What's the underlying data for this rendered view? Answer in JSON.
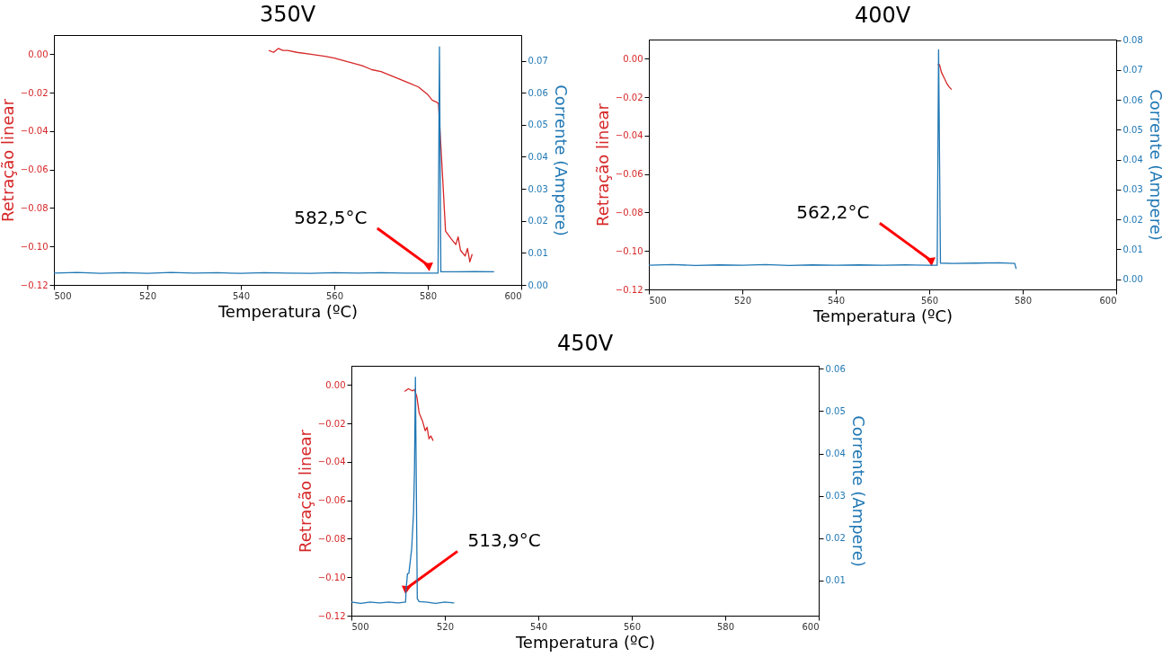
{
  "chart_data": [
    {
      "type": "line",
      "title": "350V",
      "xlabel": "Temperatura (ºC)",
      "ylabel": "Retração linear",
      "y2label": "Corrente (Ampere)",
      "xlim": [
        500,
        600
      ],
      "xticks": [
        500,
        520,
        540,
        560,
        580,
        600
      ],
      "ylim": [
        -0.12,
        0.01
      ],
      "yticks": [
        {
          "value": -0.12,
          "label": "−0.12"
        },
        {
          "value": -0.1,
          "label": "−0.10"
        },
        {
          "value": -0.08,
          "label": "−0.08"
        },
        {
          "value": -0.06,
          "label": "−0.06"
        },
        {
          "value": -0.04,
          "label": "−0.04"
        },
        {
          "value": -0.02,
          "label": "−0.02"
        },
        {
          "value": 0,
          "label": "0.00"
        }
      ],
      "y2lim": [
        0,
        0.078
      ],
      "y2ticks": [
        {
          "value": 0,
          "label": "0.00"
        },
        {
          "value": 0.01,
          "label": "0.01"
        },
        {
          "value": 0.02,
          "label": "0.02"
        },
        {
          "value": 0.03,
          "label": "0.03"
        },
        {
          "value": 0.04,
          "label": "0.04"
        },
        {
          "value": 0.05,
          "label": "0.05"
        },
        {
          "value": 0.06,
          "label": "0.06"
        },
        {
          "value": 0.07,
          "label": "0.07"
        }
      ],
      "annotations": [
        {
          "text": "582,5°C",
          "x": 580.2,
          "y": -0.11
        }
      ],
      "series": [
        {
          "color": "#d62728",
          "x": [
            546,
            547,
            548,
            549,
            550,
            552,
            555,
            558,
            560,
            563,
            566,
            568,
            570,
            572,
            574,
            576,
            578,
            580,
            581,
            582,
            582.3,
            583.2,
            583.8,
            585,
            586,
            586.5,
            587,
            588,
            588.5,
            589,
            589.5
          ],
          "values": [
            0.002,
            0.001,
            0.003,
            0.002,
            0.002,
            0.001,
            0,
            -0.001,
            -0.002,
            -0.004,
            -0.006,
            -0.008,
            -0.009,
            -0.011,
            -0.013,
            -0.015,
            -0.017,
            -0.021,
            -0.024,
            -0.025,
            -0.026,
            -0.065,
            -0.092,
            -0.096,
            -0.099,
            -0.095,
            -0.102,
            -0.105,
            -0.101,
            -0.108,
            -0.104
          ]
        },
        {
          "color": "#1f77b4",
          "axis": "y2",
          "x": [
            500,
            505,
            510,
            515,
            520,
            525,
            530,
            535,
            540,
            545,
            550,
            555,
            560,
            565,
            570,
            575,
            580,
            582.2,
            582.5,
            582.8,
            585,
            590,
            594.2
          ],
          "values": [
            0.0037,
            0.0039,
            0.0036,
            0.0038,
            0.0036,
            0.0039,
            0.0037,
            0.0038,
            0.0036,
            0.0038,
            0.0037,
            0.0036,
            0.0038,
            0.0037,
            0.0038,
            0.0037,
            0.0037,
            0.0037,
            0.0743,
            0.0041,
            0.0041,
            0.0042,
            0.0041
          ]
        }
      ]
    },
    {
      "type": "line",
      "title": "400V",
      "xlabel": "Temperatura (ºC)",
      "ylabel": "Retração linear",
      "y2label": "Corrente (Ampere)",
      "xlim": [
        500,
        600
      ],
      "xticks": [
        500,
        520,
        540,
        560,
        580,
        600
      ],
      "ylim": [
        -0.12,
        0.01
      ],
      "yticks": [
        {
          "value": -0.12,
          "label": "−0.12"
        },
        {
          "value": -0.1,
          "label": "−0.10"
        },
        {
          "value": -0.08,
          "label": "−0.08"
        },
        {
          "value": -0.06,
          "label": "−0.06"
        },
        {
          "value": -0.04,
          "label": "−0.04"
        },
        {
          "value": -0.02,
          "label": "−0.02"
        },
        {
          "value": 0,
          "label": "0.00"
        }
      ],
      "y2lim": [
        -0.0034,
        0.0802
      ],
      "y2ticks": [
        {
          "value": 0,
          "label": "0.00"
        },
        {
          "value": 0.01,
          "label": "0.01"
        },
        {
          "value": 0.02,
          "label": "0.02"
        },
        {
          "value": 0.03,
          "label": "0.03"
        },
        {
          "value": 0.04,
          "label": "0.04"
        },
        {
          "value": 0.05,
          "label": "0.05"
        },
        {
          "value": 0.06,
          "label": "0.06"
        },
        {
          "value": 0.07,
          "label": "0.07"
        },
        {
          "value": 0.08,
          "label": "0.08"
        }
      ],
      "annotations": [
        {
          "text": "562,2°C",
          "x": 560.4,
          "y": -0.105
        }
      ],
      "series": [
        {
          "color": "#d62728",
          "x": [
            561.8,
            562.2,
            562.6,
            563.2,
            563.8,
            564.2,
            564.8
          ],
          "values": [
            -0.003,
            -0.003,
            -0.007,
            -0.01,
            -0.013,
            -0.0145,
            -0.016
          ]
        },
        {
          "color": "#1f77b4",
          "axis": "y2",
          "x": [
            500,
            505,
            510,
            515,
            520,
            525,
            530,
            535,
            540,
            545,
            550,
            555,
            560,
            561.7,
            562,
            562.4,
            565,
            570,
            575,
            578.3,
            578.6
          ],
          "values": [
            0.0047,
            0.0049,
            0.0046,
            0.0048,
            0.0047,
            0.0049,
            0.0046,
            0.0048,
            0.0047,
            0.0048,
            0.0047,
            0.0048,
            0.0047,
            0.0047,
            0.0768,
            0.0054,
            0.0053,
            0.0054,
            0.0055,
            0.0053,
            0.0035
          ]
        }
      ]
    },
    {
      "type": "line",
      "title": "450V",
      "xlabel": "Temperatura (ºC)",
      "ylabel": "Retração linear",
      "y2label": "Corrente (Ampere)",
      "xlim": [
        500,
        600
      ],
      "xticks": [
        500,
        520,
        540,
        560,
        580,
        600
      ],
      "ylim": [
        -0.12,
        0.01
      ],
      "yticks": [
        {
          "value": -0.12,
          "label": "−0.12"
        },
        {
          "value": -0.1,
          "label": "−0.10"
        },
        {
          "value": -0.08,
          "label": "−0.08"
        },
        {
          "value": -0.06,
          "label": "−0.06"
        },
        {
          "value": -0.04,
          "label": "−0.04"
        },
        {
          "value": -0.02,
          "label": "−0.02"
        },
        {
          "value": 0,
          "label": "0.00"
        }
      ],
      "y2lim": [
        0.0017,
        0.0607
      ],
      "y2ticks": [
        {
          "value": 0.01,
          "label": "0.01"
        },
        {
          "value": 0.02,
          "label": "0.02"
        },
        {
          "value": 0.03,
          "label": "0.03"
        },
        {
          "value": 0.04,
          "label": "0.04"
        },
        {
          "value": 0.05,
          "label": "0.05"
        },
        {
          "value": 0.06,
          "label": "0.06"
        }
      ],
      "annotations": [
        {
          "text": "513,9°C",
          "x": 511.7,
          "y": -0.106
        }
      ],
      "series": [
        {
          "color": "#d62728",
          "x": [
            511.4,
            512.2,
            513,
            513.5,
            514,
            514.5,
            515.2,
            515.8,
            516.2,
            516.6,
            517,
            517.5
          ],
          "values": [
            -0.0033,
            -0.0019,
            -0.003,
            -0.0024,
            -0.006,
            -0.0145,
            -0.0186,
            -0.0238,
            -0.022,
            -0.028,
            -0.0265,
            -0.029
          ]
        },
        {
          "color": "#1f77b4",
          "axis": "y2",
          "x": [
            500,
            502,
            504,
            506,
            508,
            510,
            511.6,
            511.7,
            512,
            512.3,
            512.9,
            513.3,
            513.5,
            513.7,
            514.1,
            514.5,
            516,
            518,
            520,
            522
          ],
          "values": [
            0.0049,
            0.0046,
            0.0049,
            0.0047,
            0.0049,
            0.0047,
            0.0049,
            0.0078,
            0.0116,
            0.0117,
            0.0175,
            0.026,
            0.036,
            0.058,
            0.0057,
            0.005,
            0.0049,
            0.0046,
            0.0049,
            0.0047
          ]
        }
      ]
    }
  ]
}
